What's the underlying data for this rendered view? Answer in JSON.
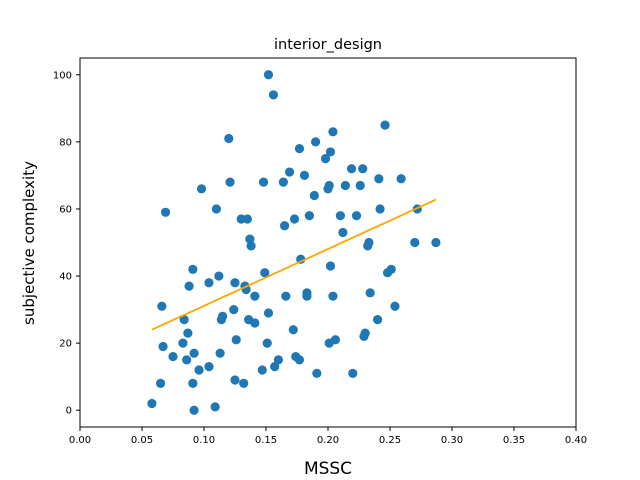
{
  "chart_data": {
    "type": "scatter",
    "title": "interior_design",
    "xlabel": "MSSC",
    "ylabel": "subjective complexity",
    "xlim": [
      0.0,
      0.4
    ],
    "ylim": [
      -5,
      105
    ],
    "xticks": [
      "0.00",
      "0.05",
      "0.10",
      "0.15",
      "0.20",
      "0.25",
      "0.30",
      "0.35",
      "0.40"
    ],
    "yticks": [
      "0",
      "20",
      "40",
      "60",
      "80",
      "100"
    ],
    "grid": false,
    "colors": {
      "points": "#1f77b4",
      "fit_line": "#ffa500"
    },
    "points": [
      [
        0.058,
        2
      ],
      [
        0.065,
        8
      ],
      [
        0.066,
        31
      ],
      [
        0.067,
        19
      ],
      [
        0.069,
        59
      ],
      [
        0.075,
        16
      ],
      [
        0.083,
        20
      ],
      [
        0.084,
        27
      ],
      [
        0.086,
        15
      ],
      [
        0.087,
        23
      ],
      [
        0.088,
        37
      ],
      [
        0.091,
        8
      ],
      [
        0.091,
        42
      ],
      [
        0.092,
        17
      ],
      [
        0.092,
        0
      ],
      [
        0.096,
        12
      ],
      [
        0.098,
        66
      ],
      [
        0.104,
        38
      ],
      [
        0.104,
        13
      ],
      [
        0.109,
        1
      ],
      [
        0.11,
        60
      ],
      [
        0.112,
        40
      ],
      [
        0.113,
        17
      ],
      [
        0.114,
        27
      ],
      [
        0.115,
        28
      ],
      [
        0.12,
        81
      ],
      [
        0.121,
        68
      ],
      [
        0.124,
        30
      ],
      [
        0.125,
        38
      ],
      [
        0.125,
        9
      ],
      [
        0.126,
        21
      ],
      [
        0.13,
        57
      ],
      [
        0.132,
        8
      ],
      [
        0.133,
        37
      ],
      [
        0.134,
        36
      ],
      [
        0.135,
        57
      ],
      [
        0.136,
        27
      ],
      [
        0.137,
        51
      ],
      [
        0.138,
        49
      ],
      [
        0.141,
        26
      ],
      [
        0.141,
        34
      ],
      [
        0.147,
        12
      ],
      [
        0.148,
        68
      ],
      [
        0.149,
        41
      ],
      [
        0.151,
        20
      ],
      [
        0.152,
        29
      ],
      [
        0.152,
        100
      ],
      [
        0.156,
        94
      ],
      [
        0.157,
        13
      ],
      [
        0.16,
        15
      ],
      [
        0.164,
        68
      ],
      [
        0.165,
        55
      ],
      [
        0.166,
        34
      ],
      [
        0.169,
        71
      ],
      [
        0.172,
        24
      ],
      [
        0.173,
        57
      ],
      [
        0.174,
        16
      ],
      [
        0.177,
        78
      ],
      [
        0.177,
        15
      ],
      [
        0.178,
        45
      ],
      [
        0.181,
        70
      ],
      [
        0.183,
        35
      ],
      [
        0.183,
        34
      ],
      [
        0.185,
        58
      ],
      [
        0.189,
        64
      ],
      [
        0.19,
        80
      ],
      [
        0.191,
        11
      ],
      [
        0.198,
        75
      ],
      [
        0.2,
        66
      ],
      [
        0.201,
        20
      ],
      [
        0.201,
        67
      ],
      [
        0.202,
        77
      ],
      [
        0.202,
        43
      ],
      [
        0.204,
        83
      ],
      [
        0.204,
        34
      ],
      [
        0.206,
        21
      ],
      [
        0.21,
        58
      ],
      [
        0.212,
        53
      ],
      [
        0.214,
        67
      ],
      [
        0.219,
        72
      ],
      [
        0.22,
        11
      ],
      [
        0.223,
        58
      ],
      [
        0.226,
        67
      ],
      [
        0.228,
        72
      ],
      [
        0.229,
        22
      ],
      [
        0.23,
        23
      ],
      [
        0.232,
        49
      ],
      [
        0.233,
        50
      ],
      [
        0.234,
        35
      ],
      [
        0.24,
        27
      ],
      [
        0.241,
        69
      ],
      [
        0.242,
        60
      ],
      [
        0.246,
        85
      ],
      [
        0.248,
        41
      ],
      [
        0.251,
        42
      ],
      [
        0.254,
        31
      ],
      [
        0.259,
        69
      ],
      [
        0.27,
        50
      ],
      [
        0.272,
        60
      ],
      [
        0.287,
        50
      ]
    ],
    "fit_line": {
      "x": [
        0.058,
        0.287
      ],
      "y": [
        24,
        62.8
      ]
    }
  }
}
